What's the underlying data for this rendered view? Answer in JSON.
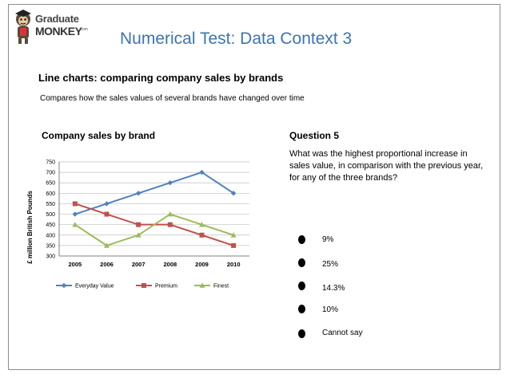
{
  "logo": {
    "line1": "Graduate",
    "line2": "MONKEY",
    "suffix": ".com"
  },
  "title": "Numerical Test: Data Context 3",
  "heading": "Line charts:  comparing company sales by brands",
  "subheading": "Compares how the sales values of several brands have changed over time",
  "question": {
    "title": "Question 5",
    "text": "What was the highest proportional increase in sales value, in comparison with the previous year, for any of the three brands?",
    "options": [
      "9%",
      "25%",
      "14.3%",
      "10%",
      "Cannot say"
    ]
  },
  "colors": {
    "title": "#3c74b3",
    "everyday": "#4f81bd",
    "premium": "#c0504d",
    "finest": "#9bbb59"
  },
  "chart_data": {
    "type": "line",
    "title": "Company sales by brand",
    "ylabel": "£ million British Pounds",
    "xlabel": "",
    "categories": [
      "2005",
      "2006",
      "2007",
      "2008",
      "2009",
      "2010"
    ],
    "ylim": [
      300,
      750
    ],
    "yticks": [
      300,
      350,
      400,
      450,
      500,
      550,
      600,
      650,
      700,
      750
    ],
    "grid": true,
    "legend": "bottom",
    "series": [
      {
        "name": "Everyday Value",
        "values": [
          500,
          550,
          600,
          650,
          700,
          600
        ],
        "marker": "diamond"
      },
      {
        "name": "Premium",
        "values": [
          550,
          500,
          450,
          450,
          400,
          350
        ],
        "marker": "square"
      },
      {
        "name": "Finest",
        "values": [
          450,
          350,
          400,
          500,
          450,
          400
        ],
        "marker": "triangle"
      }
    ]
  }
}
